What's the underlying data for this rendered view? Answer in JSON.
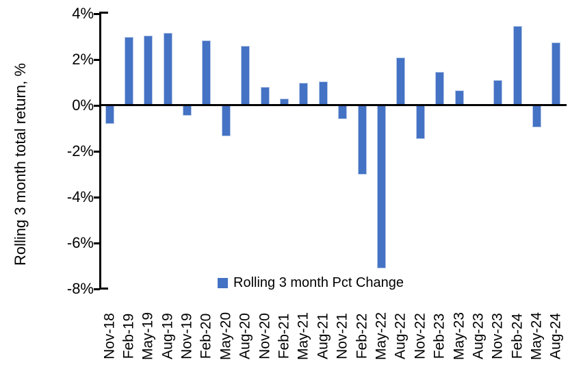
{
  "chart_data": {
    "type": "bar",
    "categories": [
      "Nov-18",
      "Feb-19",
      "May-19",
      "Aug-19",
      "Nov-19",
      "Feb-20",
      "May-20",
      "Aug-20",
      "Nov-20",
      "Feb-21",
      "May-21",
      "Aug-21",
      "Nov-21",
      "Feb-22",
      "May-22",
      "Aug-22",
      "Nov-22",
      "Feb-23",
      "May-23",
      "Aug-23",
      "Nov-23",
      "Feb-24",
      "May-24",
      "Aug-24"
    ],
    "values": [
      -0.8,
      3.0,
      3.05,
      3.15,
      -0.45,
      2.85,
      -1.35,
      2.6,
      0.8,
      0.3,
      1.0,
      1.05,
      -0.6,
      -3.0,
      -7.1,
      2.1,
      -1.45,
      1.45,
      0.65,
      0.0,
      1.1,
      3.45,
      -0.95,
      2.75
    ],
    "xlabel": "",
    "ylabel": "Rolling 3 month total return, %",
    "ylim": [
      -8,
      4
    ],
    "ytick_values": [
      4,
      2,
      0,
      -2,
      -4,
      -6,
      -8
    ],
    "ytick_labels": [
      "4%",
      "2%",
      "0%",
      "-2%",
      "-4%",
      "-6%",
      "-8%"
    ],
    "grid": false,
    "legend_label": "Rolling 3 month Pct Change",
    "legend_position": "bottom-center-inside",
    "bar_color": "#4472C4",
    "bar_border_color": "#B4C7E7",
    "axis_color": "#000000"
  }
}
